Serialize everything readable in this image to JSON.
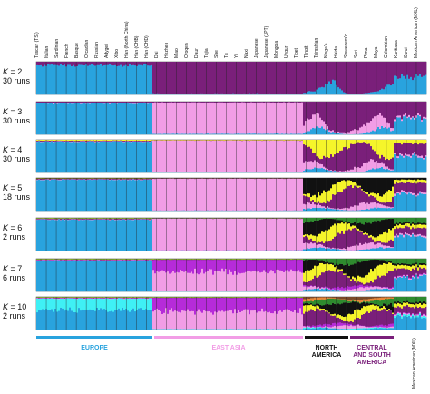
{
  "chart_data": {
    "type": "stacked-bar-structure",
    "populations": [
      "Tuscan (TSI)",
      "Italian",
      "Sardinian",
      "French",
      "Basque",
      "Orcadian",
      "Russian",
      "Adygei",
      "Xibo",
      "Han (North China)",
      "Han (CHB)",
      "Han (CHD)",
      "Dai",
      "Hezhen",
      "Miao",
      "Oroqen",
      "Daur",
      "Tujia",
      "She",
      "Tu",
      "Yi",
      "Naxi",
      "Japanese",
      "Japanese (JPT)",
      "Mongola",
      "Uygur",
      "Tibet",
      "Tlingit",
      "Tsimshian",
      "Nisga'a",
      "Haida",
      "Stswecem'c",
      "Seri",
      "Pima",
      "Maya",
      "Colombian",
      "Karitiana",
      "Surui",
      "Mexican American (MXL)"
    ],
    "rows": [
      {
        "k": "2",
        "runs": "30 runs",
        "colors": [
          "#29a3de",
          "#7a1f7a"
        ],
        "europe": [
          0.9,
          0.1
        ],
        "eastasia": [
          0.03,
          0.97
        ],
        "america": [
          0.1,
          0.9
        ],
        "mxl": [
          0.55,
          0.45
        ]
      },
      {
        "k": "3",
        "runs": "30 runs",
        "colors": [
          "#29a3de",
          "#f29de6",
          "#7a1f7a"
        ],
        "europe": [
          0.95,
          0.02,
          0.03
        ],
        "eastasia": [
          0.02,
          0.96,
          0.02
        ],
        "america": [
          0.05,
          0.15,
          0.8
        ],
        "mxl": [
          0.5,
          0.05,
          0.45
        ]
      },
      {
        "k": "4",
        "runs": "30 runs",
        "colors": [
          "#29a3de",
          "#f29de6",
          "#7a1f7a",
          "#f5f52a"
        ],
        "europe": [
          0.95,
          0.01,
          0.02,
          0.02
        ],
        "eastasia": [
          0.01,
          0.97,
          0.01,
          0.01
        ],
        "america": [
          0.05,
          0.1,
          0.55,
          0.3
        ],
        "mxl": [
          0.5,
          0.05,
          0.35,
          0.1
        ]
      },
      {
        "k": "5",
        "runs": "18 runs",
        "colors": [
          "#29a3de",
          "#f29de6",
          "#7a1f7a",
          "#f5f52a",
          "#111111"
        ],
        "europe": [
          0.95,
          0.01,
          0.02,
          0.01,
          0.01
        ],
        "eastasia": [
          0.01,
          0.97,
          0.01,
          0.005,
          0.005
        ],
        "america": [
          0.05,
          0.1,
          0.35,
          0.2,
          0.3
        ],
        "mxl": [
          0.5,
          0.05,
          0.3,
          0.1,
          0.05
        ]
      },
      {
        "k": "6",
        "runs": "2 runs",
        "colors": [
          "#29a3de",
          "#f29de6",
          "#7a1f7a",
          "#f5f52a",
          "#111111",
          "#2e8b2e"
        ],
        "europe": [
          0.95,
          0.01,
          0.02,
          0.01,
          0.005,
          0.005
        ],
        "eastasia": [
          0.01,
          0.97,
          0.01,
          0.005,
          0.0025,
          0.0025
        ],
        "america": [
          0.05,
          0.1,
          0.3,
          0.2,
          0.25,
          0.1
        ],
        "mxl": [
          0.45,
          0.05,
          0.2,
          0.1,
          0.05,
          0.15
        ]
      },
      {
        "k": "7",
        "runs": "6 runs",
        "colors": [
          "#29a3de",
          "#f29de6",
          "#b62bd9",
          "#7a1f7a",
          "#f5f52a",
          "#111111",
          "#2e8b2e"
        ],
        "europe": [
          0.95,
          0.01,
          0.01,
          0.01,
          0.01,
          0.005,
          0.005
        ],
        "eastasia": [
          0.01,
          0.6,
          0.36,
          0.01,
          0.01,
          0.005,
          0.005
        ],
        "america": [
          0.05,
          0.05,
          0.05,
          0.3,
          0.2,
          0.25,
          0.1
        ],
        "mxl": [
          0.45,
          0.03,
          0.02,
          0.2,
          0.1,
          0.05,
          0.15
        ]
      },
      {
        "k": "10",
        "runs": "2 runs",
        "colors": [
          "#29a3de",
          "#3ff0f5",
          "#f29de6",
          "#b62bd9",
          "#7a1f7a",
          "#f5f52a",
          "#111111",
          "#2e8b2e",
          "#e8883a",
          "#7a4a2a"
        ],
        "europe": [
          0.6,
          0.35,
          0.01,
          0.01,
          0.01,
          0.01,
          0.005,
          0.005,
          0,
          0
        ],
        "eastasia": [
          0.01,
          0.01,
          0.55,
          0.4,
          0.01,
          0.01,
          0.005,
          0.005,
          0,
          0
        ],
        "america": [
          0.03,
          0.02,
          0.05,
          0.05,
          0.3,
          0.15,
          0.2,
          0.1,
          0.05,
          0.05
        ],
        "mxl": [
          0.4,
          0.05,
          0.03,
          0.02,
          0.2,
          0.1,
          0.05,
          0.15,
          0,
          0
        ]
      }
    ],
    "regions": [
      {
        "name": "EUROPE",
        "color": "#29a3de"
      },
      {
        "name": "EAST ASIA",
        "color": "#f29de6"
      },
      {
        "name": "NORTH AMERICA",
        "color": "#111111"
      },
      {
        "name": "CENTRAL AND SOUTH AMERICA",
        "color": "#7a1f7a"
      }
    ],
    "side_label": "Mexican American (MXL)"
  }
}
